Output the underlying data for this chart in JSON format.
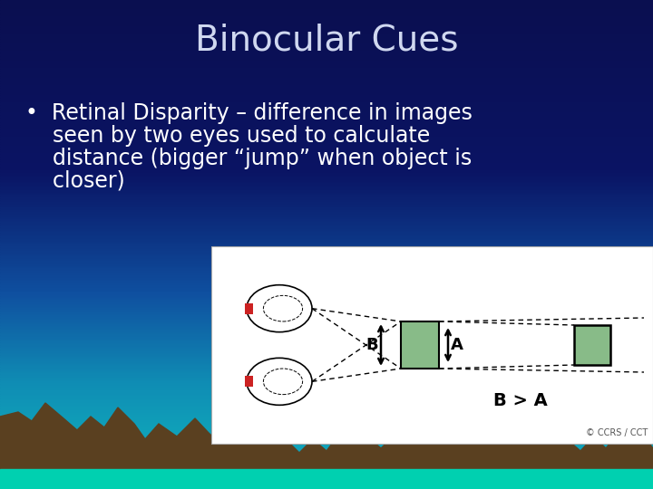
{
  "title": "Binocular Cues",
  "title_color": "#d0d8f0",
  "title_fontsize": 28,
  "bullet_lines": [
    "•  Retinal Disparity – difference in images",
    "    seen by two eyes used to calculate",
    "    distance (bigger “jump” when object is",
    "    closer)"
  ],
  "bullet_fontsize": 17,
  "bullet_color": "#FFFFFF",
  "mountain_color": "#5a4020",
  "water_color": "#00d0b0",
  "diagram_bg": "#FFFFFF",
  "diagram_box_color": "#88bb88",
  "diagram_red_color": "#cc2222",
  "grad_stops": [
    [
      0.0,
      [
        10,
        15,
        80
      ]
    ],
    [
      0.35,
      [
        10,
        20,
        100
      ]
    ],
    [
      0.6,
      [
        15,
        80,
        160
      ]
    ],
    [
      0.78,
      [
        15,
        140,
        180
      ]
    ],
    [
      0.88,
      [
        15,
        160,
        185
      ]
    ],
    [
      1.0,
      [
        15,
        170,
        190
      ]
    ]
  ]
}
